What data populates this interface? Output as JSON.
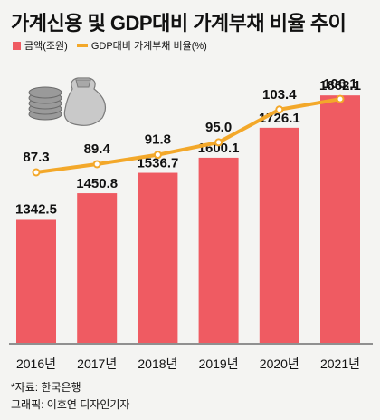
{
  "title": "가계신용 및 GDP대비 가계부채 비율 추이",
  "colors": {
    "bar": "#ef5b62",
    "line": "#f3a82a",
    "background": "#f4f4f2",
    "axis": "#555555"
  },
  "chart_data": {
    "type": "bar",
    "categories": [
      "2016년",
      "2017년",
      "2018년",
      "2019년",
      "2020년",
      "2021년"
    ],
    "series": [
      {
        "name": "금액(조원)",
        "type": "bar",
        "values": [
          1342.5,
          1450.8,
          1536.7,
          1600.1,
          1726.1,
          1862.1
        ]
      },
      {
        "name": "GDP대비 가계부채 비율(%)",
        "type": "line",
        "values": [
          87.3,
          89.4,
          91.8,
          95.0,
          103.4,
          106.1
        ]
      }
    ],
    "value_labels": {
      "bar": [
        "1342.5",
        "1450.8",
        "1536.7",
        "1600.1",
        "1726.1",
        "1862.1"
      ],
      "line": [
        "87.3",
        "89.4",
        "91.8",
        "95.0",
        "103.4",
        "106.1"
      ]
    },
    "legend_position": "top-left",
    "grid": false
  },
  "footer": {
    "source": "*자료: 한국은행",
    "credit": "그래픽: 이호연 디자인기자"
  }
}
